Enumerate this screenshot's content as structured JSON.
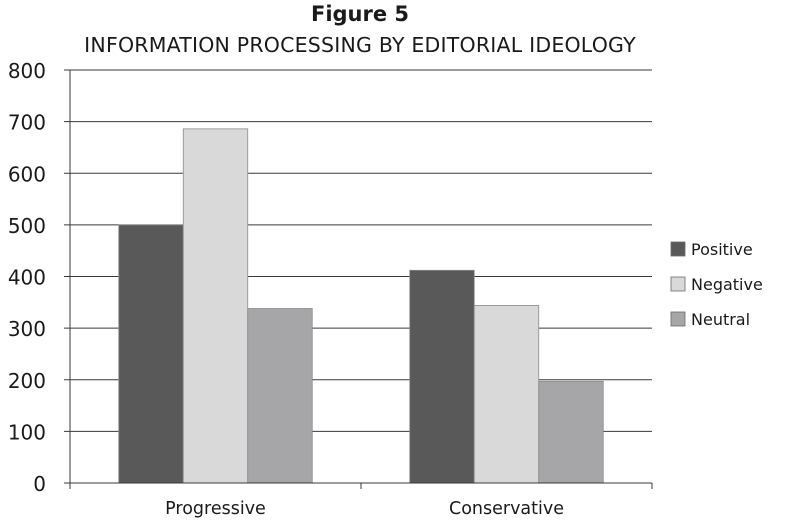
{
  "figure": {
    "label": "Figure 5",
    "subtitle": "INFORMATION PROCESSING BY EDITORIAL IDEOLOGY"
  },
  "chart_data": {
    "type": "bar",
    "categories": [
      "Progressive",
      "Conservative"
    ],
    "series": [
      {
        "name": "Positive",
        "values": [
          500,
          412
        ],
        "color": "#595959"
      },
      {
        "name": "Negative",
        "values": [
          686,
          344
        ],
        "color": "#d9d9d9"
      },
      {
        "name": "Neutral",
        "values": [
          338,
          197
        ],
        "color": "#a6a6a8"
      }
    ],
    "ylim": [
      0,
      800
    ],
    "yticks": [
      0,
      100,
      200,
      300,
      400,
      500,
      600,
      700,
      800
    ],
    "grid": true,
    "legend": "right"
  }
}
